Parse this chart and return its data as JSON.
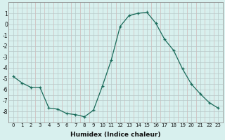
{
  "x": [
    0,
    1,
    2,
    3,
    4,
    5,
    6,
    7,
    8,
    9,
    10,
    11,
    12,
    13,
    14,
    15,
    16,
    17,
    18,
    19,
    20,
    21,
    22,
    23
  ],
  "y": [
    -4.8,
    -5.4,
    -5.8,
    -5.8,
    -7.7,
    -7.8,
    -8.2,
    -8.3,
    -8.5,
    -7.9,
    -5.7,
    -3.3,
    -0.2,
    0.8,
    1.0,
    1.1,
    0.1,
    -1.4,
    -2.4,
    -4.1,
    -5.5,
    -6.4,
    -7.2,
    -7.7
  ],
  "xlabel": "Humidex (Indice chaleur)",
  "ylabel": "",
  "line_color": "#1a6b5a",
  "marker": "+",
  "marker_size": 3,
  "bg_color": "#d8f0ee",
  "grid_color_major": "#b8c8c8",
  "grid_color_minor": "#d0b8b8",
  "ylim": [
    -9,
    2
  ],
  "xlim": [
    -0.5,
    23.5
  ],
  "yticks": [
    1,
    0,
    -1,
    -2,
    -3,
    -4,
    -5,
    -6,
    -7,
    -8
  ],
  "xticks": [
    0,
    1,
    2,
    3,
    4,
    5,
    6,
    7,
    8,
    9,
    10,
    11,
    12,
    13,
    14,
    15,
    16,
    17,
    18,
    19,
    20,
    21,
    22,
    23
  ]
}
